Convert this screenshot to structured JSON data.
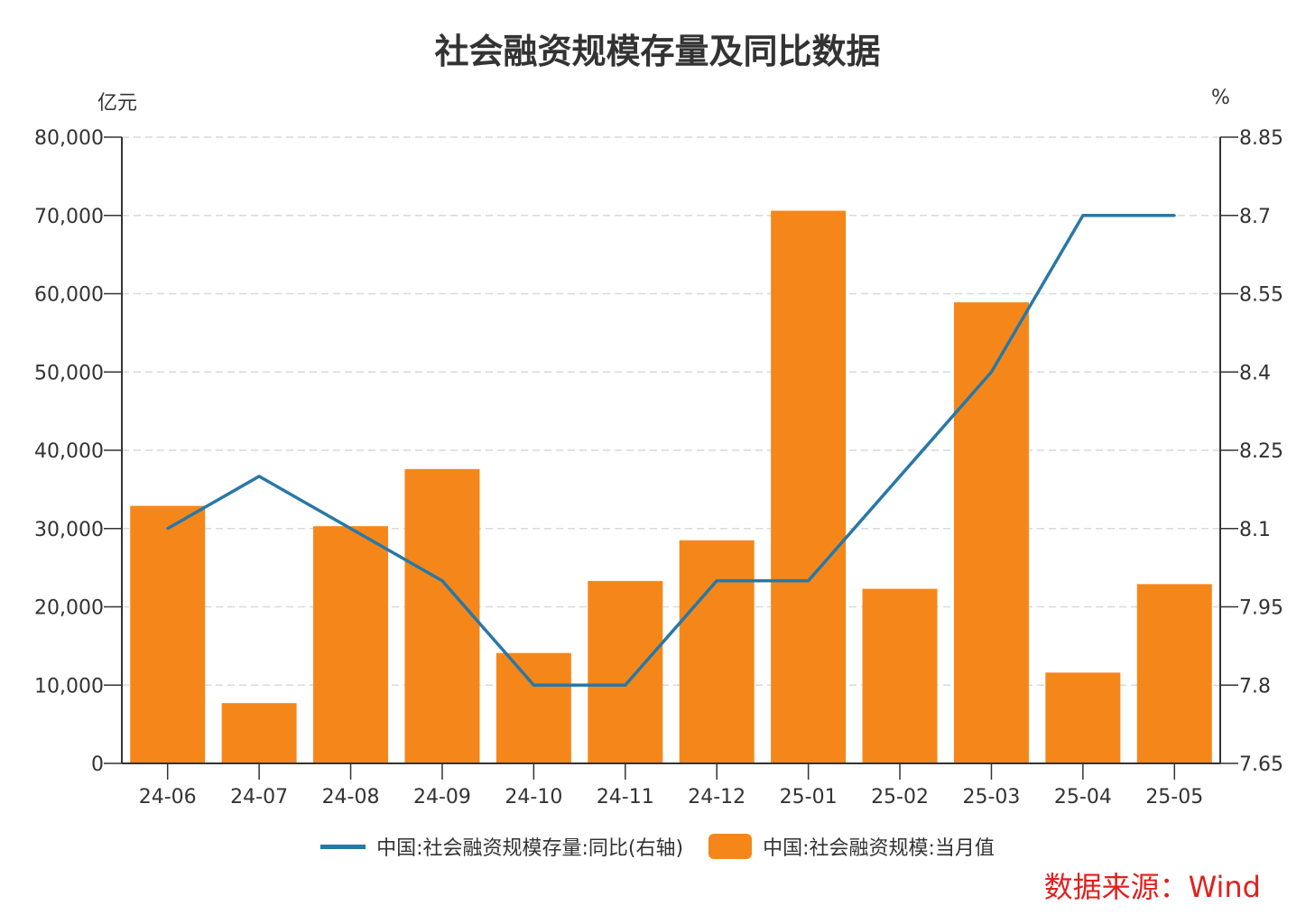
{
  "chart_data": {
    "type": "bar",
    "title": "社会融资规模存量及同比数据",
    "categories": [
      "24-06",
      "24-07",
      "24-08",
      "24-09",
      "24-10",
      "24-11",
      "24-12",
      "25-01",
      "25-02",
      "25-03",
      "25-04",
      "25-05"
    ],
    "left_axis": {
      "unit": "亿元",
      "ylim": [
        0,
        80000
      ],
      "ticks": [
        0,
        10000,
        20000,
        30000,
        40000,
        50000,
        60000,
        70000,
        80000
      ],
      "tick_labels": [
        "0",
        "10,000",
        "20,000",
        "30,000",
        "40,000",
        "50,000",
        "60,000",
        "70,000",
        "80,000"
      ]
    },
    "right_axis": {
      "unit": "%",
      "ylim": [
        7.65,
        8.85
      ],
      "ticks": [
        7.65,
        7.8,
        7.95,
        8.1,
        8.25,
        8.4,
        8.55,
        8.7,
        8.85
      ],
      "tick_labels": [
        "7.65",
        "7.8",
        "7.95",
        "8.1",
        "8.25",
        "8.4",
        "8.55",
        "8.7",
        "8.85"
      ]
    },
    "grid": true,
    "legend_placement": "bottom",
    "series": [
      {
        "name": "中国:社会融资规模存量:同比(右轴)",
        "type": "line",
        "axis": "right",
        "color": "#2878A6",
        "values": [
          8.1,
          8.2,
          8.1,
          8.0,
          7.8,
          7.8,
          8.0,
          8.0,
          8.2,
          8.4,
          8.7,
          8.7
        ]
      },
      {
        "name": "中国:社会融资规模:当月值",
        "type": "bar",
        "axis": "left",
        "color": "#F5871A",
        "values": [
          32900,
          7700,
          30300,
          37600,
          14100,
          23300,
          28500,
          70600,
          22300,
          58900,
          11600,
          22900
        ]
      }
    ]
  },
  "source": {
    "text": "数据来源：Wind",
    "color": "#E0211D"
  }
}
